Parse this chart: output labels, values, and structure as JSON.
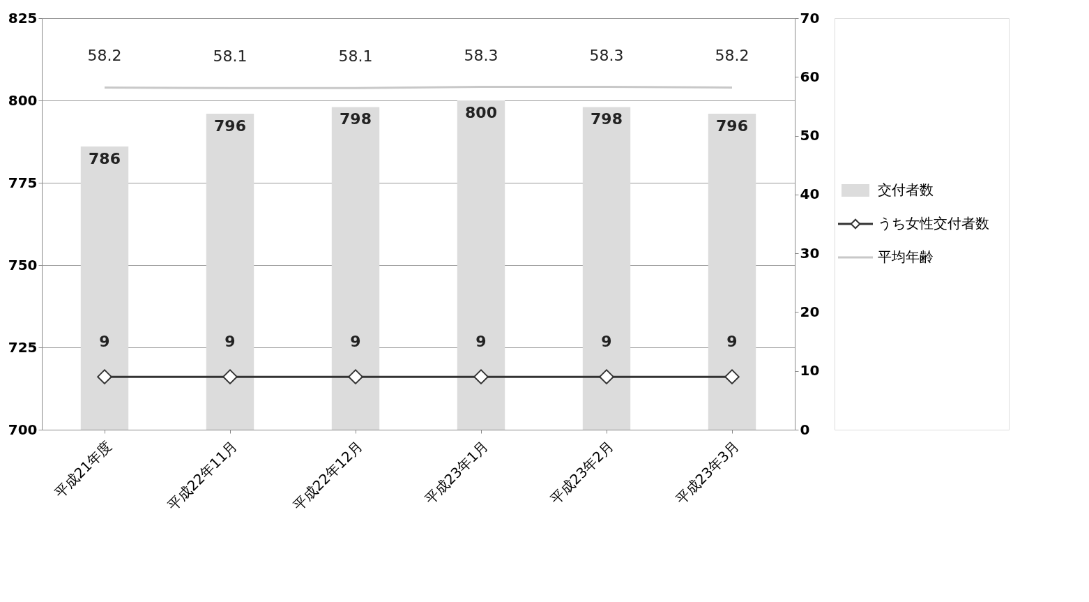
{
  "chart_data": {
    "type": "bar",
    "categories": [
      "平成21年度",
      "平成22年11月",
      "平成22年12月",
      "平成23年1月",
      "平成23年2月",
      "平成23年3月"
    ],
    "series": [
      {
        "name": "交付者数",
        "color": "#dcdcdc",
        "values": [
          786,
          796,
          798,
          800,
          798,
          796
        ]
      },
      {
        "name": "うち女性交付者数",
        "type": "line",
        "axis": "y2",
        "color": "#333333",
        "marker": "diamond",
        "values": [
          9,
          9,
          9,
          9,
          9,
          9
        ]
      },
      {
        "name": "平均年齢",
        "type": "line",
        "axis": "y2",
        "color": "#c8c8c8",
        "marker": "none",
        "values": [
          58.2,
          58.1,
          58.1,
          58.3,
          58.3,
          58.2
        ]
      }
    ],
    "ylim": [
      700,
      825
    ],
    "yticks": [
      700,
      725,
      750,
      775,
      800,
      825
    ],
    "y2lim": [
      0,
      70
    ],
    "y2ticks": [
      0,
      10,
      20,
      30,
      40,
      50,
      60,
      70
    ],
    "grid": "y",
    "legend": "right",
    "data_labels": true
  }
}
